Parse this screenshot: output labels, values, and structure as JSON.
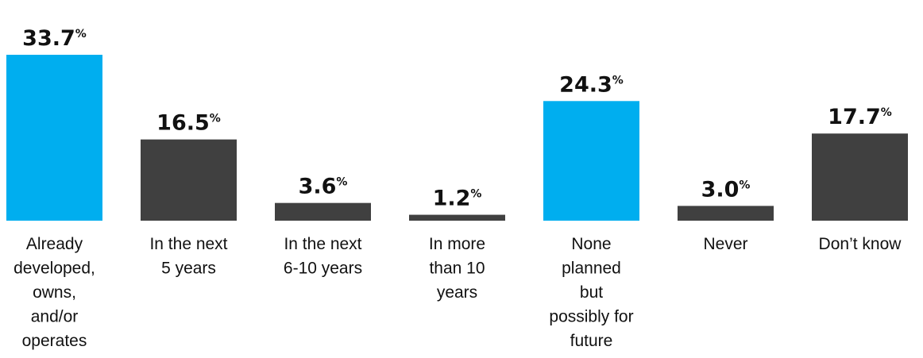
{
  "chart_data": {
    "type": "bar",
    "categories": [
      "Already developed, owns, and/or operates",
      "In the next 5 years",
      "In the next 6-10 years",
      "In more than 10 years",
      "None planned but possibly for future",
      "Never",
      "Don’t know"
    ],
    "category_label_lines": [
      [
        "Already",
        "developed,",
        "owns,",
        "and/or",
        "operates"
      ],
      [
        "In the next",
        "5 years"
      ],
      [
        "In the next",
        "6-10 years"
      ],
      [
        "In more",
        "than 10",
        "years"
      ],
      [
        "None",
        "planned",
        "but",
        "possibly for",
        "future"
      ],
      [
        "Never"
      ],
      [
        "Don’t know"
      ]
    ],
    "values": [
      33.7,
      16.5,
      3.6,
      1.2,
      24.3,
      3.0,
      17.7
    ],
    "value_labels": [
      "33.7",
      "16.5",
      "3.6",
      "1.2",
      "24.3",
      "3.0",
      "17.7"
    ],
    "unit": "%",
    "highlighted": [
      true,
      false,
      false,
      false,
      true,
      false,
      false
    ],
    "colors": {
      "highlight": "#00aeef",
      "default": "#404040",
      "text": "#111111"
    },
    "ylim": [
      0,
      33.7
    ],
    "grid": false,
    "title": "",
    "xlabel": "",
    "ylabel": ""
  }
}
